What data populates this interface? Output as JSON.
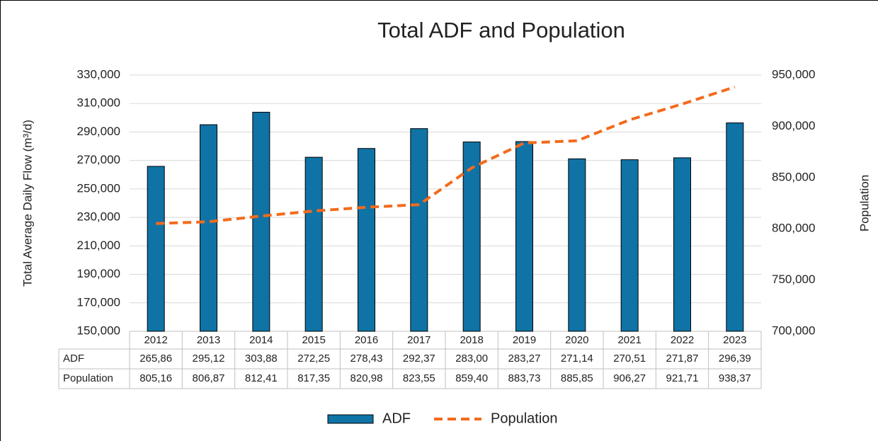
{
  "chart_data": {
    "type": "bar",
    "title": "Total ADF and Population",
    "y_label": "Total Average Daily Flow (m³/d)",
    "y2_label": "Population",
    "categories": [
      "2012",
      "2013",
      "2014",
      "2015",
      "2016",
      "2017",
      "2018",
      "2019",
      "2020",
      "2021",
      "2022",
      "2023"
    ],
    "series": [
      {
        "name": "ADF",
        "type": "bar",
        "color": "#0f73a6",
        "values": [
          265860,
          295120,
          303880,
          272250,
          278430,
          292370,
          283000,
          283270,
          271140,
          270510,
          271870,
          296390
        ],
        "value_labels": [
          "265,86",
          "295,12",
          "303,88",
          "272,25",
          "278,43",
          "292,37",
          "283,00",
          "283,27",
          "271,14",
          "270,51",
          "271,87",
          "296,39"
        ]
      },
      {
        "name": "Population",
        "type": "line",
        "axis": "y2",
        "color": "#f26b1d",
        "values": [
          805160,
          806870,
          812410,
          817350,
          820980,
          823550,
          859400,
          883730,
          885850,
          906270,
          921710,
          938370
        ],
        "value_labels": [
          "805,16",
          "806,87",
          "812,41",
          "817,35",
          "820,98",
          "823,55",
          "859,40",
          "883,73",
          "885,85",
          "906,27",
          "921,71",
          "938,37"
        ]
      }
    ],
    "ylim": [
      150000,
      330000
    ],
    "yticks": [
      {
        "value": 150000,
        "label": "150,000"
      },
      {
        "value": 170000,
        "label": "170,000"
      },
      {
        "value": 190000,
        "label": "190,000"
      },
      {
        "value": 210000,
        "label": "210,000"
      },
      {
        "value": 230000,
        "label": "230,000"
      },
      {
        "value": 250000,
        "label": "250,000"
      },
      {
        "value": 270000,
        "label": "270,000"
      },
      {
        "value": 290000,
        "label": "290,000"
      },
      {
        "value": 310000,
        "label": "310,000"
      },
      {
        "value": 330000,
        "label": "330,000"
      }
    ],
    "y2lim": [
      700000,
      950000
    ],
    "y2ticks": [
      {
        "value": 700000,
        "label": "700,000"
      },
      {
        "value": 750000,
        "label": "750,000"
      },
      {
        "value": 800000,
        "label": "800,000"
      },
      {
        "value": 850000,
        "label": "850,000"
      },
      {
        "value": 900000,
        "label": "900,000"
      },
      {
        "value": 950000,
        "label": "950,000"
      }
    ],
    "grid": true,
    "legend": "bottom"
  }
}
